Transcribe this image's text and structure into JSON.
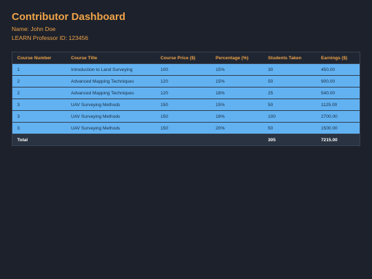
{
  "header": {
    "title": "Contributor Dashboard",
    "name_line": "Name: John Doe",
    "id_line": "LEARN Professor ID: 123456"
  },
  "table": {
    "columns": [
      "Course Number",
      "Course Title",
      "Course Price ($)",
      "Percentage (%)",
      "Students Taken",
      "Earnings ($)"
    ],
    "rows": [
      [
        "1",
        "Introduction to Land Surveying",
        "100",
        "15%",
        "30",
        "450.00"
      ],
      [
        "2",
        "Advanced Mapping Techniques",
        "120",
        "15%",
        "50",
        "900.00"
      ],
      [
        "2",
        "Advanced Mapping Techniques",
        "120",
        "18%",
        "25",
        "540.00"
      ],
      [
        "3",
        "UAV Surveying Methods",
        "150",
        "15%",
        "50",
        "1125.00"
      ],
      [
        "3",
        "UAV Surveying Methods",
        "150",
        "18%",
        "100",
        "2700.00"
      ],
      [
        "3",
        "UAV Surveying Methods",
        "150",
        "20%",
        "50",
        "1500.00"
      ]
    ],
    "footer": {
      "label": "Total",
      "students_total": "305",
      "earnings_total": "7215.00"
    }
  },
  "colors": {
    "accent": "#f0a348",
    "background": "#1c212b",
    "row_fill": "#62b2f2",
    "header_fill": "#1f2632",
    "footer_fill": "#2a3341"
  }
}
